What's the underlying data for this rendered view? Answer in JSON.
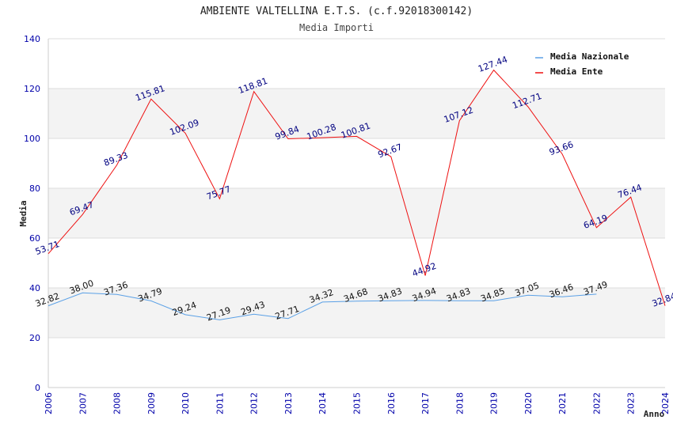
{
  "chart_data": {
    "type": "line",
    "title": "AMBIENTE VALTELLINA E.T.S. (c.f.92018300142)",
    "subtitle": "Media Importi",
    "xlabel": "Anno",
    "ylabel": "Media",
    "ylim": [
      0,
      140
    ],
    "yticks": [
      0,
      20,
      40,
      60,
      80,
      100,
      120,
      140
    ],
    "grid": true,
    "legend_position": "top-right",
    "categories": [
      "2006",
      "2007",
      "2008",
      "2009",
      "2010",
      "2011",
      "2012",
      "2013",
      "2014",
      "2015",
      "2016",
      "2017",
      "2018",
      "2019",
      "2020",
      "2021",
      "2022",
      "2023",
      "2024"
    ],
    "series": [
      {
        "name": "Media Nazionale",
        "color": "#5aa0e6",
        "label_color": "#111111",
        "values": [
          32.82,
          38.0,
          37.36,
          34.79,
          29.24,
          27.19,
          29.43,
          27.71,
          34.32,
          34.68,
          34.83,
          34.94,
          34.83,
          34.85,
          37.05,
          36.46,
          37.49,
          null,
          null
        ],
        "labels": [
          "32.82",
          "38.00",
          "37.36",
          "34.79",
          "29.24",
          "27.19",
          "29.43",
          "27.71",
          "34.32",
          "34.68",
          "34.83",
          "34.94",
          "34.83",
          "34.85",
          "37.05",
          "36.46",
          "37.49",
          "",
          ""
        ]
      },
      {
        "name": "Media Ente",
        "color": "#ee1111",
        "label_color": "#000080",
        "values": [
          53.71,
          69.47,
          89.33,
          115.81,
          102.09,
          75.77,
          118.81,
          99.84,
          100.28,
          100.81,
          92.67,
          44.92,
          107.12,
          127.44,
          112.71,
          93.66,
          64.19,
          76.44,
          32.84
        ],
        "labels": [
          "53.71",
          "69.47",
          "89.33",
          "115.81",
          "102.09",
          "75.77",
          "118.81",
          "99.84",
          "100.28",
          "100.81",
          "92.67",
          "44.92",
          "107.12",
          "127.44",
          "112.71",
          "93.66",
          "64.19",
          "76.44",
          "32.84"
        ]
      }
    ]
  }
}
